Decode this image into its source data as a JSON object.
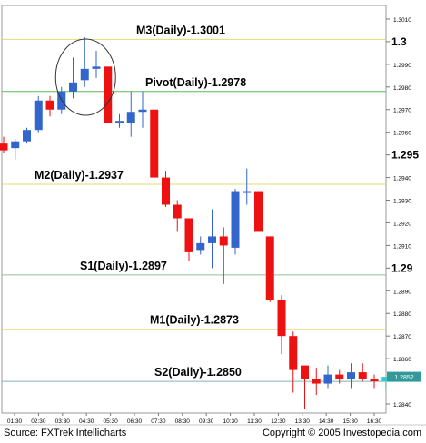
{
  "footer": {
    "source": "Source: FXTrek Intellicharts",
    "copyright": "Copyright © 2005 Investopedia.com"
  },
  "chart_data": {
    "type": "candlestick",
    "ylim": [
      1.2836,
      1.3016
    ],
    "y_ticks": [
      "1.3010",
      "1.3",
      "1.2990",
      "1.2980",
      "1.2970",
      "1.2960",
      "1.295",
      "1.2940",
      "1.2930",
      "1.2920",
      "1.2910",
      "1.29",
      "1.2890",
      "1.2880",
      "1.2870",
      "1.2860",
      "1.2840"
    ],
    "y_tick_values": [
      1.301,
      1.3,
      1.299,
      1.298,
      1.297,
      1.296,
      1.295,
      1.294,
      1.293,
      1.292,
      1.291,
      1.29,
      1.289,
      1.288,
      1.287,
      1.286,
      1.284
    ],
    "y_tick_major": [
      false,
      true,
      false,
      false,
      false,
      false,
      true,
      false,
      false,
      false,
      false,
      true,
      false,
      false,
      false,
      false,
      false
    ],
    "x_ticks": [
      "01:30",
      "02:30",
      "03:30",
      "04:30",
      "05:30",
      "06:30",
      "07:30",
      "08:30",
      "09:30",
      "10:30",
      "11:30",
      "12:30",
      "13:30",
      "14:30",
      "15:30",
      "16:30"
    ],
    "current_price": "1.2852",
    "levels": [
      {
        "name": "M3(Daily)-1.3001",
        "value": 1.3001,
        "color": "#e8d870"
      },
      {
        "name": "Pivot(Daily)-1.2978",
        "value": 1.2978,
        "color": "#5cb85c"
      },
      {
        "name": "M2(Daily)-1.2937",
        "value": 1.2937,
        "color": "#e8d870"
      },
      {
        "name": "S1(Daily)-1.2897",
        "value": 1.2897,
        "color": "#8fbf9f"
      },
      {
        "name": "M1(Daily)-1.2873",
        "value": 1.2873,
        "color": "#e8d870"
      },
      {
        "name": "S2(Daily)-1.2850",
        "value": 1.285,
        "color": "#7fb8b0"
      }
    ],
    "up_color": "#3366cc",
    "down_color": "#ee1111",
    "candles": [
      {
        "o": 1.2955,
        "h": 1.2958,
        "l": 1.2951,
        "c": 1.2952
      },
      {
        "o": 1.2953,
        "h": 1.2957,
        "l": 1.2948,
        "c": 1.2956
      },
      {
        "o": 1.2956,
        "h": 1.2962,
        "l": 1.2955,
        "c": 1.2961
      },
      {
        "o": 1.2961,
        "h": 1.2976,
        "l": 1.296,
        "c": 1.2974
      },
      {
        "o": 1.2974,
        "h": 1.2976,
        "l": 1.2967,
        "c": 1.297
      },
      {
        "o": 1.297,
        "h": 1.298,
        "l": 1.2968,
        "c": 1.2978
      },
      {
        "o": 1.2978,
        "h": 1.2993,
        "l": 1.2975,
        "c": 1.2982
      },
      {
        "o": 1.2983,
        "h": 1.3002,
        "l": 1.298,
        "c": 1.2988
      },
      {
        "o": 1.2988,
        "h": 1.2996,
        "l": 1.2984,
        "c": 1.2989
      },
      {
        "o": 1.2989,
        "h": 1.2989,
        "l": 1.2964,
        "c": 1.2964
      },
      {
        "o": 1.2965,
        "h": 1.2968,
        "l": 1.2962,
        "c": 1.2965
      },
      {
        "o": 1.2964,
        "h": 1.2978,
        "l": 1.2958,
        "c": 1.2969
      },
      {
        "o": 1.2969,
        "h": 1.2978,
        "l": 1.2962,
        "c": 1.297
      },
      {
        "o": 1.297,
        "h": 1.297,
        "l": 1.294,
        "c": 1.294
      },
      {
        "o": 1.294,
        "h": 1.2943,
        "l": 1.2927,
        "c": 1.2928
      },
      {
        "o": 1.2928,
        "h": 1.293,
        "l": 1.2916,
        "c": 1.2922
      },
      {
        "o": 1.2922,
        "h": 1.2922,
        "l": 1.2903,
        "c": 1.2907
      },
      {
        "o": 1.2908,
        "h": 1.2914,
        "l": 1.2906,
        "c": 1.2911
      },
      {
        "o": 1.2911,
        "h": 1.2926,
        "l": 1.29,
        "c": 1.2914
      },
      {
        "o": 1.2914,
        "h": 1.2918,
        "l": 1.2893,
        "c": 1.291
      },
      {
        "o": 1.2909,
        "h": 1.2935,
        "l": 1.2906,
        "c": 1.2934
      },
      {
        "o": 1.2934,
        "h": 1.2944,
        "l": 1.2928,
        "c": 1.2934
      },
      {
        "o": 1.2934,
        "h": 1.2934,
        "l": 1.2916,
        "c": 1.2916
      },
      {
        "o": 1.2914,
        "h": 1.2914,
        "l": 1.2885,
        "c": 1.2886
      },
      {
        "o": 1.2886,
        "h": 1.2888,
        "l": 1.2862,
        "c": 1.287
      },
      {
        "o": 1.287,
        "h": 1.2872,
        "l": 1.2845,
        "c": 1.2855
      },
      {
        "o": 1.2857,
        "h": 1.2857,
        "l": 1.2838,
        "c": 1.2851
      },
      {
        "o": 1.2851,
        "h": 1.2856,
        "l": 1.2844,
        "c": 1.2849
      },
      {
        "o": 1.2849,
        "h": 1.2857,
        "l": 1.2847,
        "c": 1.2853
      },
      {
        "o": 1.2853,
        "h": 1.2855,
        "l": 1.2849,
        "c": 1.2851
      },
      {
        "o": 1.2851,
        "h": 1.2858,
        "l": 1.2847,
        "c": 1.2854
      },
      {
        "o": 1.2854,
        "h": 1.2858,
        "l": 1.285,
        "c": 1.2851
      },
      {
        "o": 1.2851,
        "h": 1.2853,
        "l": 1.2847,
        "c": 1.285
      },
      {
        "o": 1.285,
        "h": 1.2852,
        "l": 1.2847,
        "c": 1.2852
      }
    ],
    "last_candle_color": "#33cccc",
    "annotation": {
      "shape": "circle",
      "around_candles": [
        5,
        9
      ]
    }
  }
}
